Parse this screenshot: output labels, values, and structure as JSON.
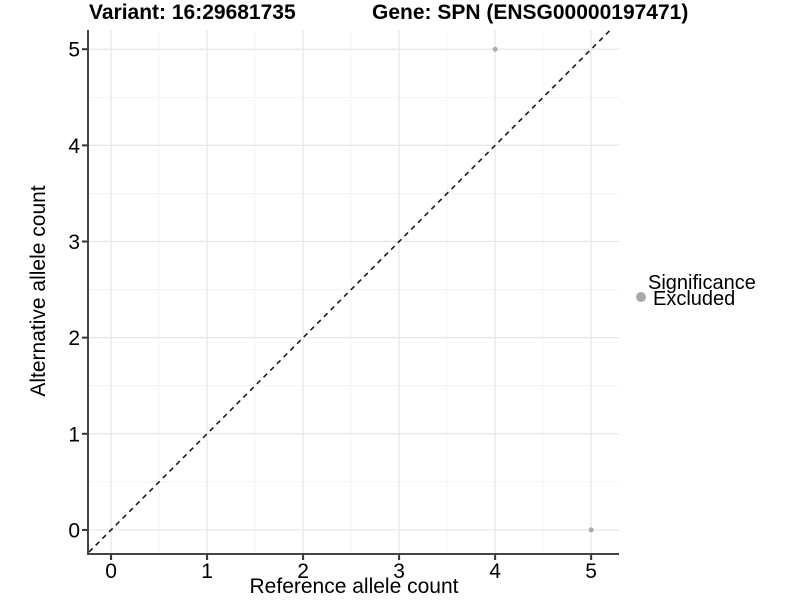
{
  "chart_data": {
    "type": "scatter",
    "title_left": "Variant: 16:29681735",
    "title_right": "Gene: SPN (ENSG00000197471)",
    "xlabel": "Reference allele count",
    "ylabel": "Alternative allele count",
    "xticks": [
      0,
      1,
      2,
      3,
      4,
      5
    ],
    "yticks": [
      0,
      1,
      2,
      3,
      4,
      5
    ],
    "xlim": [
      -0.23,
      5.29
    ],
    "ylim": [
      -0.24,
      5.2
    ],
    "grid": {
      "major": true,
      "minor": true
    },
    "series": [
      {
        "name": "Excluded",
        "color": "#ababab",
        "point_radius": 2.5,
        "points": [
          [
            4,
            5
          ],
          [
            5,
            0
          ]
        ]
      }
    ],
    "identity_line": {
      "slope": 1,
      "intercept": 0,
      "style": "dashed",
      "color": "#1a1a1a"
    },
    "legend": {
      "position": "right",
      "title": "Significance",
      "entries": [
        {
          "label": "Excluded",
          "color": "#a9a9a9"
        }
      ]
    },
    "colors": {
      "background": "#ffffff",
      "grid_major": "#e6e6e6",
      "grid_minor": "#f2f2f2",
      "axis_line": "#454545",
      "tick_mark": "#333333",
      "text": "#000000"
    }
  }
}
